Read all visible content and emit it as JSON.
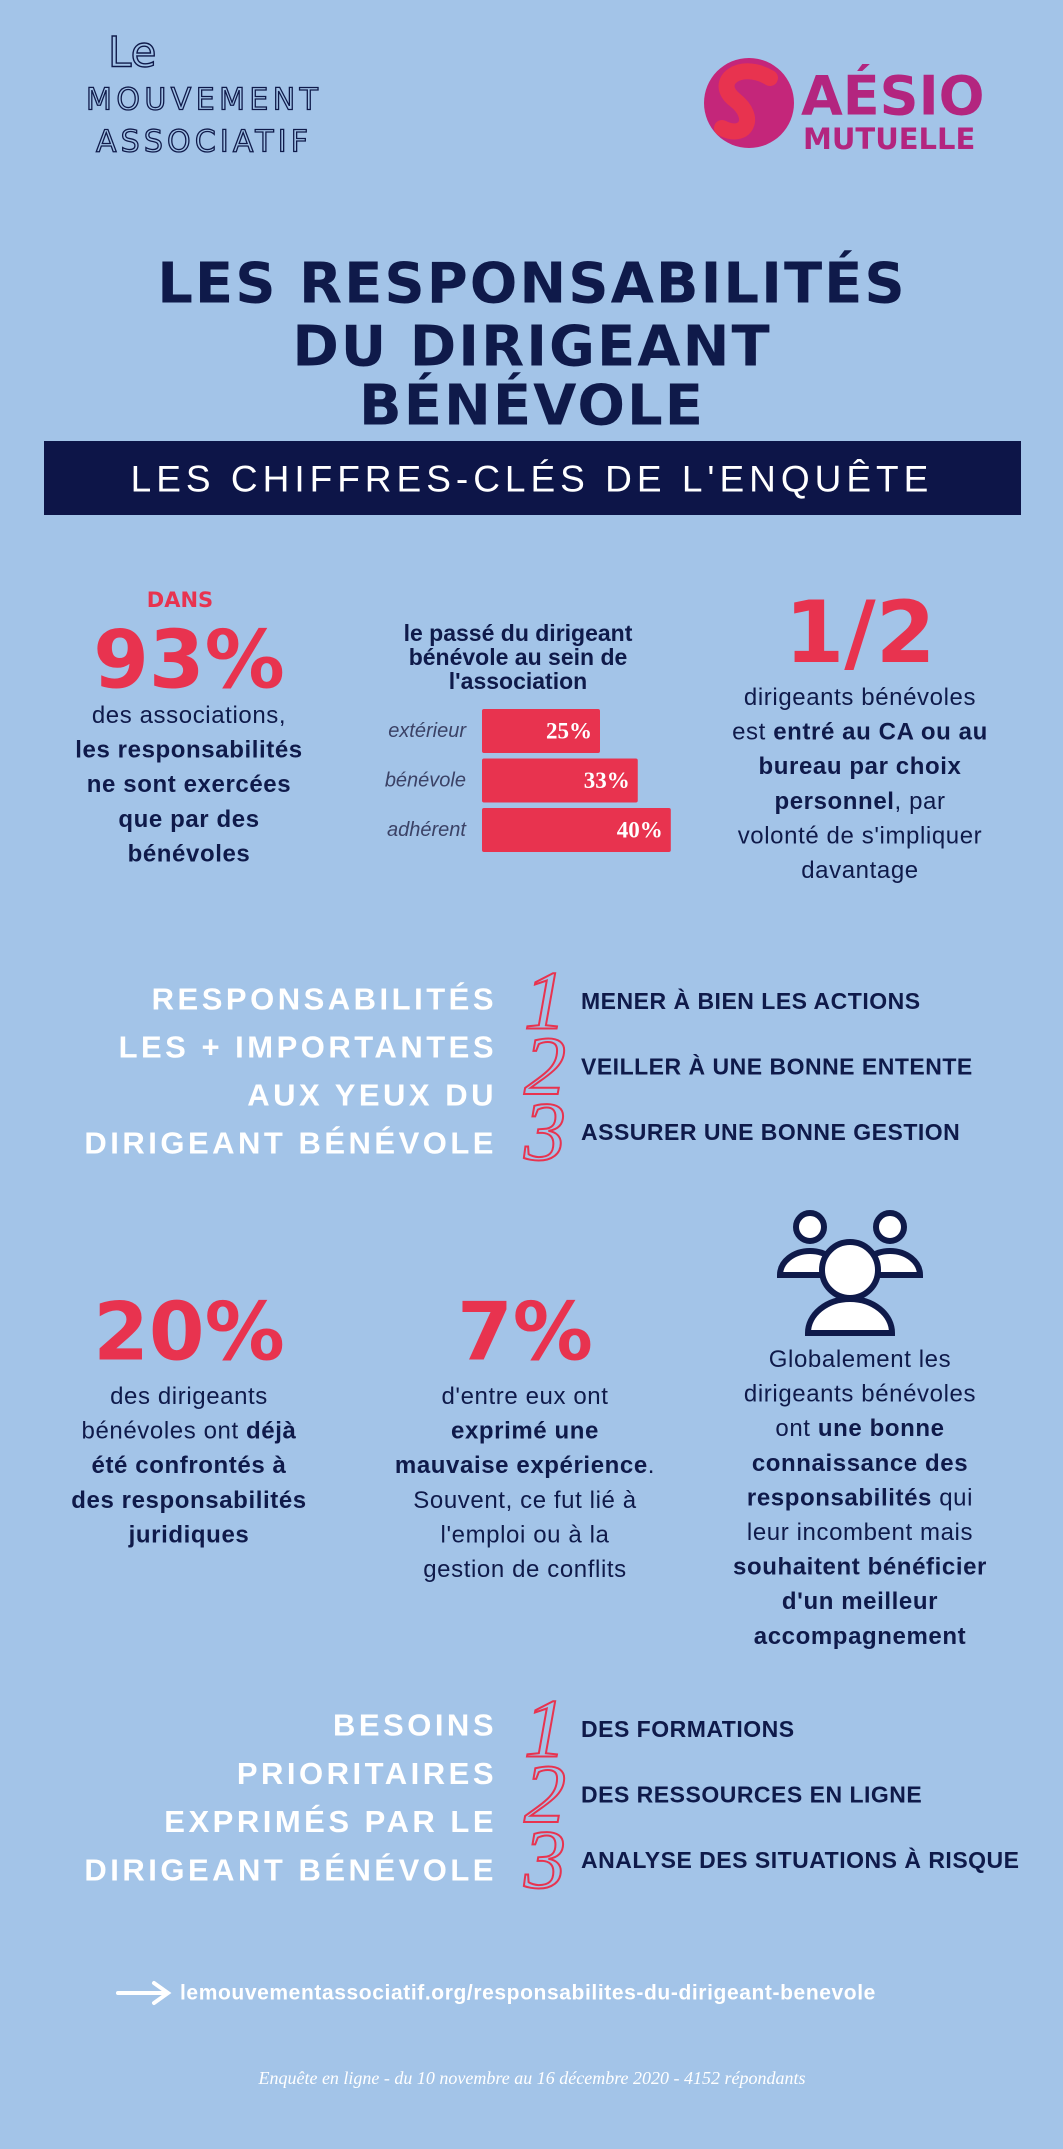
{
  "logo_left": [
    "Le",
    "MOUVEMENT",
    "ASSOCIATIF"
  ],
  "logo_right": [
    "AÉSIO",
    "MUTUELLE"
  ],
  "title": [
    "LES RESPONSABILITÉS",
    "DU DIRIGEANT",
    "BÉNÉVOLE"
  ],
  "subtitle": "LES CHIFFRES-CLÉS DE L'ENQUÊTE",
  "stat_associations": {
    "kicker": "DANS",
    "value": "93%",
    "lines": [
      [
        "des associations,"
      ],
      [
        {
          "text": "les responsabilités",
          "weight": "bold"
        }
      ],
      [
        {
          "text": "ne sont exercées",
          "weight": "bold"
        }
      ],
      [
        {
          "text": "que par des",
          "weight": "bold"
        }
      ],
      [
        {
          "text": "bénévoles",
          "weight": "bold"
        }
      ]
    ]
  },
  "chart_data": {
    "type": "bar",
    "orientation": "horizontal",
    "title": [
      "le passé du dirigeant",
      "bénévole au sein de",
      "l'association"
    ],
    "categories": [
      "extérieur",
      "bénévole",
      "adhérent"
    ],
    "values": [
      25,
      33,
      40
    ],
    "value_labels": [
      "25%",
      "33%",
      "40%"
    ],
    "color": "#e8334f"
  },
  "stat_half": {
    "value": "1/2",
    "lines": [
      [
        "dirigeants bénévoles"
      ],
      [
        "est ",
        {
          "text": "entré au CA ou au",
          "weight": "bold"
        }
      ],
      [
        {
          "text": "bureau par choix",
          "weight": "bold"
        }
      ],
      [
        {
          "text": "personnel",
          "weight": "bold"
        },
        ", par"
      ],
      [
        "volonté de s'impliquer"
      ],
      [
        "davantage"
      ]
    ]
  },
  "responsibilities": {
    "heading": [
      "RESPONSABILITÉS",
      "LES + IMPORTANTES",
      "AUX YEUX DU",
      "DIRIGEANT BÉNÉVOLE"
    ],
    "items": [
      {
        "rank": 1,
        "text": "MENER À BIEN LES ACTIONS"
      },
      {
        "rank": 2,
        "text": "VEILLER À UNE BONNE ENTENTE"
      },
      {
        "rank": 3,
        "text": "ASSURER UNE BONNE GESTION"
      }
    ]
  },
  "stat_legal": {
    "value": "20%",
    "lines": [
      [
        "des dirigeants"
      ],
      [
        "bénévoles ont ",
        {
          "text": "déjà",
          "weight": "bold"
        }
      ],
      [
        {
          "text": "été confrontés à",
          "weight": "bold"
        }
      ],
      [
        {
          "text": "des responsabilités",
          "weight": "bold"
        }
      ],
      [
        {
          "text": "juridiques",
          "weight": "bold"
        }
      ]
    ]
  },
  "stat_bad": {
    "value": "7%",
    "lines": [
      [
        "d'entre eux ont"
      ],
      [
        {
          "text": "exprimé une",
          "weight": "bold"
        }
      ],
      [
        {
          "text": "mauvaise expérience",
          "weight": "bold"
        },
        "."
      ],
      [
        "Souvent, ce fut lié à"
      ],
      [
        "l'emploi ou à la"
      ],
      [
        "gestion de conflits"
      ]
    ]
  },
  "stat_knowledge": {
    "lines": [
      [
        "Globalement les"
      ],
      [
        "dirigeants bénévoles"
      ],
      [
        "ont ",
        {
          "text": "une bonne",
          "weight": "bold"
        }
      ],
      [
        {
          "text": "connaissance des",
          "weight": "bold"
        }
      ],
      [
        {
          "text": "responsabilités",
          "weight": "bold"
        },
        " qui"
      ],
      [
        "leur incombent mais"
      ],
      [
        {
          "text": "souhaitent bénéficier",
          "weight": "bold"
        }
      ],
      [
        {
          "text": "d'un meilleur",
          "weight": "bold"
        }
      ],
      [
        {
          "text": "accompagnement",
          "weight": "bold"
        }
      ]
    ]
  },
  "needs": {
    "heading": [
      "BESOINS",
      "PRIORITAIRES",
      "EXPRIMÉS PAR LE",
      "DIRIGEANT BÉNÉVOLE"
    ],
    "items": [
      {
        "rank": 1,
        "text": "DES FORMATIONS"
      },
      {
        "rank": 2,
        "text": "DES RESSOURCES EN LIGNE"
      },
      {
        "rank": 3,
        "text": "ANALYSE DES SITUATIONS À RISQUE"
      }
    ]
  },
  "link": "lemouvementassociatif.org/responsabilites-du-dirigeant-benevole",
  "footnote": "Enquête en ligne - du 10 novembre au 16 décembre 2020 - 4152 répondants"
}
